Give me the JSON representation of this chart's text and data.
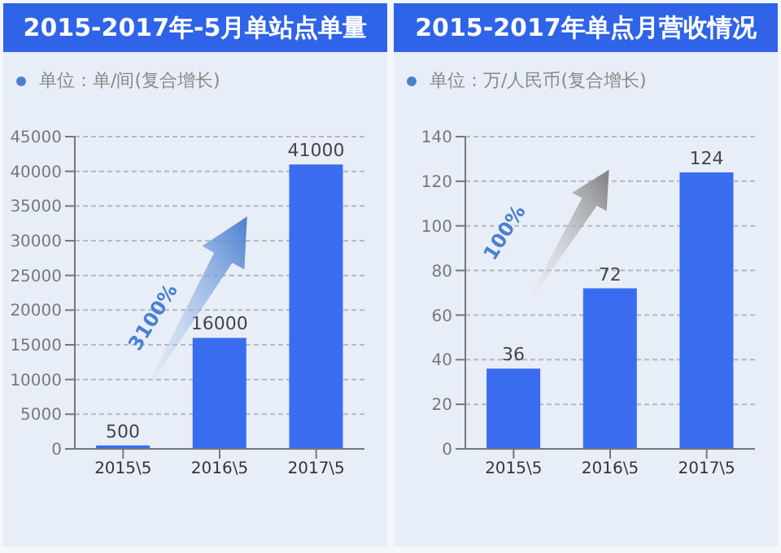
{
  "chart_data": [
    {
      "type": "bar",
      "title": "2015-2017年-5月单站点单量",
      "subtitle": "单位：单/间(复合增长)",
      "categories": [
        "2015\\5",
        "2016\\5",
        "2017\\5"
      ],
      "values": [
        500,
        16000,
        41000
      ],
      "color": "#3a6cf0",
      "ylim": [
        0,
        45000
      ],
      "yticks": [
        0,
        5000,
        10000,
        15000,
        20000,
        25000,
        30000,
        35000,
        40000,
        45000
      ],
      "grid": "y",
      "data_labels": true,
      "annotations": [
        "3100%"
      ]
    },
    {
      "type": "bar",
      "title": "2015-2017年单点月营收情况",
      "subtitle": "单位：万/人民币(复合增长)",
      "categories": [
        "2015\\5",
        "2016\\5",
        "2017\\5"
      ],
      "values": [
        36,
        72,
        124
      ],
      "color": "#3a6cf0",
      "ylim": [
        0,
        140
      ],
      "yticks": [
        0,
        20,
        40,
        60,
        80,
        100,
        120,
        140
      ],
      "grid": "y",
      "data_labels": true,
      "annotations": [
        "100%"
      ]
    }
  ]
}
